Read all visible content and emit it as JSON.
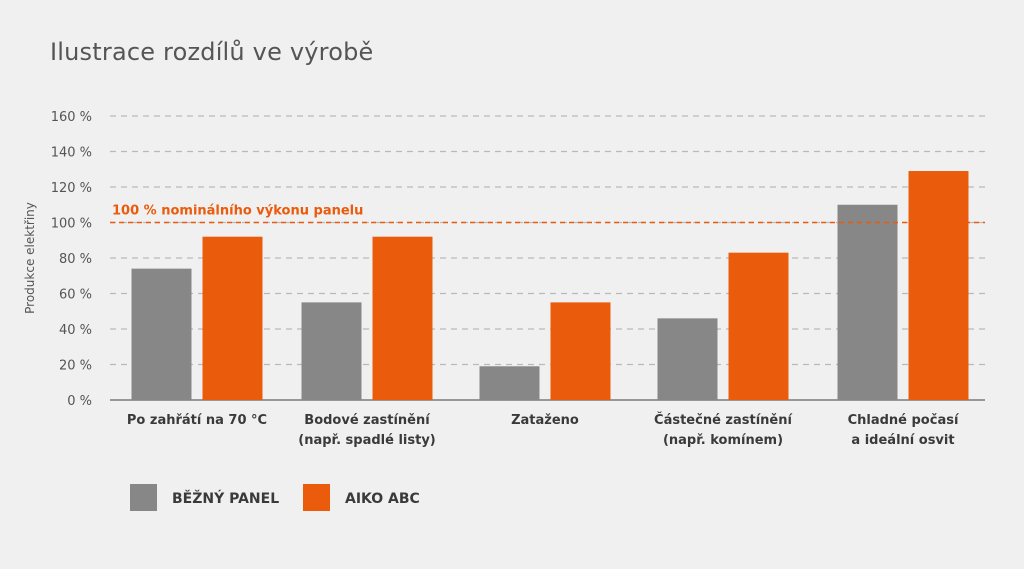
{
  "chart_data": {
    "type": "bar",
    "title": "Ilustrace rozdílů ve výrobě",
    "ylabel": "Produkce elektřiny",
    "xlabel": "",
    "ylim": [
      0,
      160
    ],
    "yticks": [
      0,
      20,
      40,
      60,
      80,
      100,
      120,
      140,
      160
    ],
    "ytick_labels": [
      "0 %",
      "20 %",
      "40 %",
      "60 %",
      "80 %",
      "100 %",
      "120 %",
      "140 %",
      "160 %"
    ],
    "grid": true,
    "categories": [
      [
        "Po zahřátí na 70 °C"
      ],
      [
        "Bodové zastínění",
        "(např. spadlé listy)"
      ],
      [
        "Zataženo"
      ],
      [
        "Částečné zastínění",
        "(např. komínem)"
      ],
      [
        "Chladné počasí",
        "a ideální osvit"
      ]
    ],
    "series": [
      {
        "name": "BĚŽNÝ PANEL",
        "color": "#878787",
        "values": [
          74,
          55,
          19,
          46,
          110
        ]
      },
      {
        "name": "AIKO ABC",
        "color": "#ea5b0c",
        "values": [
          92,
          92,
          55,
          83,
          129
        ]
      }
    ],
    "reference_line": {
      "value": 100,
      "label": "100 % nominálního výkonu panelu",
      "color": "#ea5b0c"
    },
    "legend_position": "bottom-left"
  }
}
